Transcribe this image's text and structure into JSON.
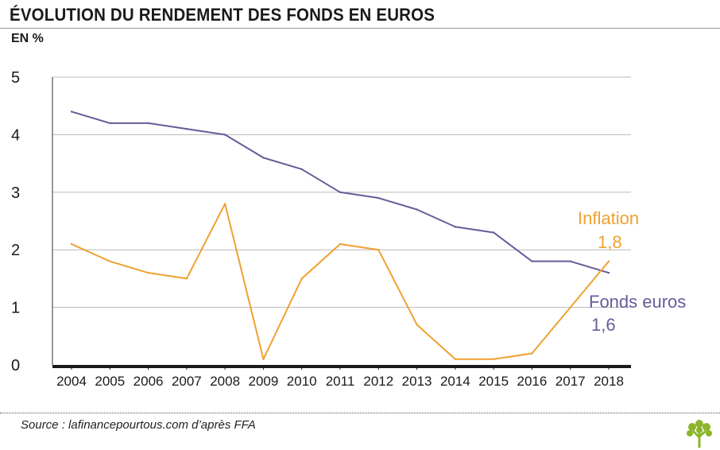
{
  "header": {
    "title": "ÉVOLUTION DU RENDEMENT DES FONDS EN EUROS",
    "unit": "EN %"
  },
  "footer": {
    "source": "Source : lafinancepourtous.com d’après FFA"
  },
  "chart_data": {
    "type": "line",
    "title": "ÉVOLUTION DU RENDEMENT DES FONDS EN EUROS",
    "ylabel": "EN %",
    "x": [
      "2004",
      "2005",
      "2006",
      "2007",
      "2008",
      "2009",
      "2010",
      "2011",
      "2012",
      "2013",
      "2014",
      "2015",
      "2016",
      "2017",
      "2018"
    ],
    "ylim": [
      0,
      5
    ],
    "yticks": [
      "0",
      "1",
      "2",
      "3",
      "4",
      "5"
    ],
    "grid": true,
    "series": [
      {
        "name": "Fonds euros",
        "color": "#6a5a9a",
        "values": [
          4.4,
          4.2,
          4.2,
          4.1,
          4.0,
          3.6,
          3.4,
          3.0,
          2.9,
          2.7,
          2.4,
          2.3,
          1.8,
          1.8,
          1.6
        ],
        "end_label": "1,6"
      },
      {
        "name": "Inflation",
        "color": "#f0a030",
        "values": [
          2.1,
          1.8,
          1.6,
          1.5,
          2.8,
          0.1,
          1.5,
          2.1,
          2.0,
          0.7,
          0.1,
          0.1,
          0.2,
          1.0,
          1.8
        ],
        "end_label": "1,8"
      }
    ]
  }
}
